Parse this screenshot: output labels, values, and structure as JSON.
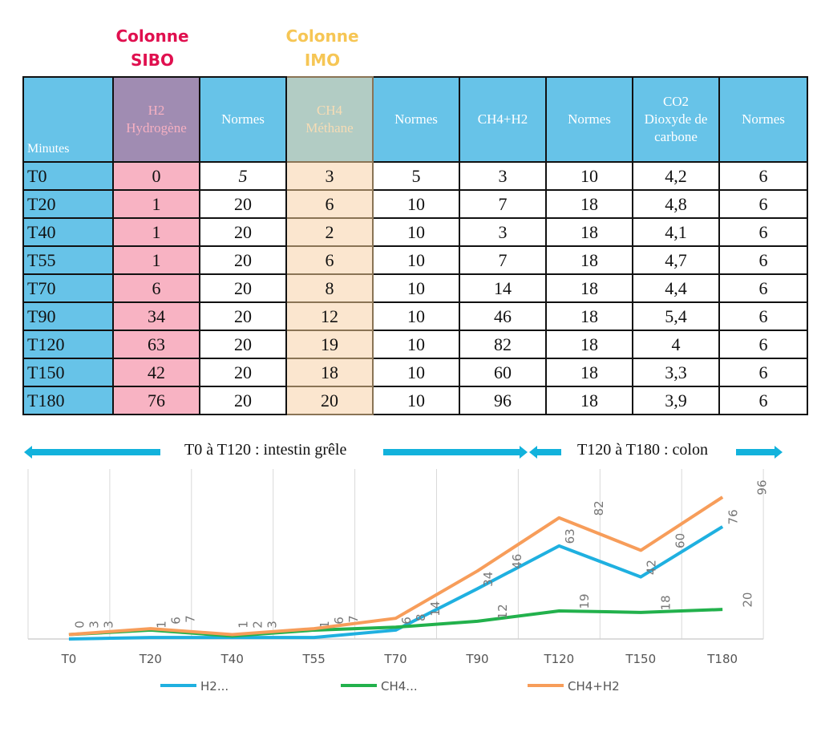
{
  "column_titles": {
    "sibo": [
      "Colonne",
      "SIBO"
    ],
    "imo": [
      "Colonne",
      "IMO"
    ],
    "sibo_color": "#e0104f",
    "imo_color": "#f6c655"
  },
  "table": {
    "headers": [
      "Minutes",
      "H2\nHydrogène",
      "Normes",
      "CH4\nMéthane",
      "Normes",
      "CH4+H2",
      "Normes",
      "CO2\nDioxyde de\ncarbone",
      "Normes"
    ],
    "rows": [
      [
        "T0",
        "0",
        "5",
        "3",
        "5",
        "3",
        "10",
        "4,2",
        "6"
      ],
      [
        "T20",
        "1",
        "20",
        "6",
        "10",
        "7",
        "18",
        "4,8",
        "6"
      ],
      [
        "T40",
        "1",
        "20",
        "2",
        "10",
        "3",
        "18",
        "4,1",
        "6"
      ],
      [
        "T55",
        "1",
        "20",
        "6",
        "10",
        "7",
        "18",
        "4,7",
        "6"
      ],
      [
        "T70",
        "6",
        "20",
        "8",
        "10",
        "14",
        "18",
        "4,4",
        "6"
      ],
      [
        "T90",
        "34",
        "20",
        "12",
        "10",
        "46",
        "18",
        "5,4",
        "6"
      ],
      [
        "T120",
        "63",
        "20",
        "19",
        "10",
        "82",
        "18",
        "4",
        "6"
      ],
      [
        "T150",
        "42",
        "20",
        "18",
        "10",
        "60",
        "18",
        "3,3",
        "6"
      ],
      [
        "T180",
        "76",
        "20",
        "20",
        "10",
        "96",
        "18",
        "3,9",
        "6"
      ]
    ]
  },
  "banner": {
    "left": "T0 à T120 : intestin grêle",
    "right": "T120 à T180 : colon",
    "arrow_color": "#12b2dc"
  },
  "chart_data": {
    "type": "line",
    "categories": [
      "T0",
      "T20",
      "T40",
      "T55",
      "T70",
      "T90",
      "T120",
      "T150",
      "T180"
    ],
    "series": [
      {
        "name": "H2...",
        "values": [
          0,
          1,
          1,
          1,
          6,
          34,
          63,
          42,
          76
        ],
        "color": "#1fb0e0"
      },
      {
        "name": "CH4...",
        "values": [
          3,
          6,
          2,
          6,
          8,
          12,
          19,
          18,
          20
        ],
        "color": "#22b14c"
      },
      {
        "name": "CH4+H2",
        "values": [
          3,
          7,
          3,
          7,
          14,
          46,
          82,
          60,
          96
        ],
        "color": "#f79d5a"
      }
    ],
    "ylim": [
      0,
      115
    ],
    "grid": "vertical",
    "data_labels": true,
    "legend": "bottom"
  }
}
